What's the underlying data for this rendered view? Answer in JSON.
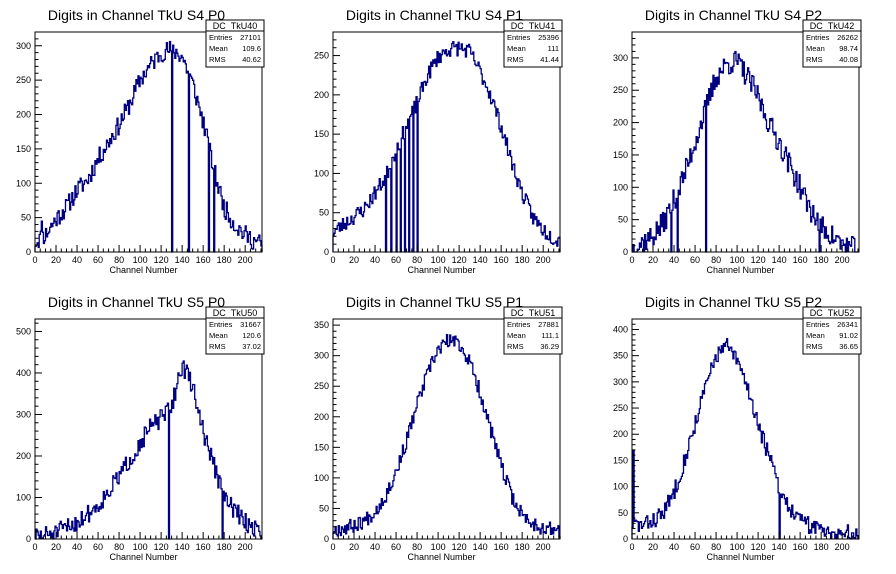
{
  "chart_data": [
    {
      "type": "histogram",
      "title": "Digits in Channel TkU S4 P0",
      "xlabel": "Channel Number",
      "xlim": [
        0,
        216
      ],
      "ylim": [
        0,
        320
      ],
      "xticks": [
        0,
        20,
        40,
        60,
        80,
        100,
        120,
        140,
        160,
        180,
        200
      ],
      "yticks": [
        0,
        50,
        100,
        150,
        200,
        250,
        300
      ],
      "stats": {
        "name": "DC_TkU40",
        "entries": "27101",
        "mean": "109.6",
        "rms": "40.62"
      },
      "profile": [
        [
          0,
          15
        ],
        [
          10,
          25
        ],
        [
          20,
          48
        ],
        [
          30,
          65
        ],
        [
          40,
          90
        ],
        [
          50,
          105
        ],
        [
          60,
          135
        ],
        [
          70,
          160
        ],
        [
          80,
          185
        ],
        [
          90,
          215
        ],
        [
          100,
          250
        ],
        [
          110,
          272
        ],
        [
          120,
          290
        ],
        [
          130,
          295
        ],
        [
          140,
          285
        ],
        [
          150,
          245
        ],
        [
          160,
          190
        ],
        [
          170,
          120
        ],
        [
          180,
          65
        ],
        [
          190,
          40
        ],
        [
          200,
          25
        ],
        [
          210,
          15
        ],
        [
          216,
          12
        ]
      ],
      "spikes": [
        [
          130,
          0
        ],
        [
          146,
          0
        ],
        [
          165,
          0
        ],
        [
          170,
          0
        ],
        [
          6,
          45
        ]
      ],
      "jitter": 14,
      "seed": 11
    },
    {
      "type": "histogram",
      "title": "Digits in Channel TkU S4 P1",
      "xlabel": "Channel Number",
      "xlim": [
        0,
        216
      ],
      "ylim": [
        0,
        280
      ],
      "xticks": [
        0,
        20,
        40,
        60,
        80,
        100,
        120,
        140,
        160,
        180,
        200
      ],
      "yticks": [
        0,
        50,
        100,
        150,
        200,
        250
      ],
      "stats": {
        "name": "DC_TkU41",
        "entries": "25396",
        "mean": "111",
        "rms": "41.44"
      },
      "profile": [
        [
          0,
          25
        ],
        [
          10,
          35
        ],
        [
          20,
          45
        ],
        [
          30,
          55
        ],
        [
          40,
          75
        ],
        [
          50,
          95
        ],
        [
          60,
          130
        ],
        [
          70,
          160
        ],
        [
          80,
          190
        ],
        [
          90,
          225
        ],
        [
          100,
          248
        ],
        [
          110,
          258
        ],
        [
          120,
          260
        ],
        [
          130,
          255
        ],
        [
          140,
          230
        ],
        [
          150,
          200
        ],
        [
          160,
          160
        ],
        [
          170,
          115
        ],
        [
          180,
          75
        ],
        [
          190,
          45
        ],
        [
          200,
          28
        ],
        [
          210,
          18
        ],
        [
          216,
          15
        ]
      ],
      "spikes": [
        [
          50,
          0
        ],
        [
          55,
          0
        ],
        [
          60,
          0
        ],
        [
          64,
          0
        ],
        [
          68,
          0
        ],
        [
          72,
          0
        ],
        [
          76,
          0
        ],
        [
          80,
          0
        ]
      ],
      "jitter": 10,
      "seed": 23
    },
    {
      "type": "histogram",
      "title": "Digits in Channel TkU S4 P2",
      "xlabel": "Channel Number",
      "xlim": [
        0,
        216
      ],
      "ylim": [
        0,
        340
      ],
      "xticks": [
        0,
        20,
        40,
        60,
        80,
        100,
        120,
        140,
        160,
        180,
        200
      ],
      "yticks": [
        0,
        50,
        100,
        150,
        200,
        250,
        300
      ],
      "stats": {
        "name": "DC_TkU42",
        "entries": "26262",
        "mean": "98.74",
        "rms": "40.08"
      },
      "profile": [
        [
          0,
          5
        ],
        [
          10,
          15
        ],
        [
          20,
          25
        ],
        [
          30,
          45
        ],
        [
          40,
          80
        ],
        [
          50,
          120
        ],
        [
          60,
          170
        ],
        [
          70,
          220
        ],
        [
          80,
          270
        ],
        [
          90,
          290
        ],
        [
          100,
          295
        ],
        [
          110,
          270
        ],
        [
          120,
          240
        ],
        [
          130,
          200
        ],
        [
          140,
          170
        ],
        [
          150,
          135
        ],
        [
          160,
          100
        ],
        [
          170,
          65
        ],
        [
          180,
          40
        ],
        [
          190,
          25
        ],
        [
          200,
          12
        ],
        [
          210,
          6
        ],
        [
          216,
          3
        ]
      ],
      "spikes": [
        [
          4,
          0
        ],
        [
          37,
          0
        ],
        [
          43,
          0
        ],
        [
          70,
          0
        ],
        [
          178,
          0
        ]
      ],
      "jitter": 18,
      "seed": 37
    },
    {
      "type": "histogram",
      "title": "Digits in Channel TkU S5 P0",
      "xlabel": "Channel Number",
      "xlim": [
        0,
        216
      ],
      "ylim": [
        0,
        530
      ],
      "xticks": [
        0,
        20,
        40,
        60,
        80,
        100,
        120,
        140,
        160,
        180,
        200
      ],
      "yticks": [
        0,
        100,
        200,
        300,
        400,
        500
      ],
      "stats": {
        "name": "DC_TkU50",
        "entries": "31667",
        "mean": "120.6",
        "rms": "37.02"
      },
      "profile": [
        [
          0,
          5
        ],
        [
          20,
          15
        ],
        [
          40,
          40
        ],
        [
          60,
          80
        ],
        [
          80,
          150
        ],
        [
          100,
          230
        ],
        [
          110,
          270
        ],
        [
          120,
          290
        ],
        [
          130,
          320
        ],
        [
          140,
          420
        ],
        [
          150,
          370
        ],
        [
          160,
          260
        ],
        [
          170,
          180
        ],
        [
          180,
          100
        ],
        [
          190,
          70
        ],
        [
          200,
          40
        ],
        [
          210,
          25
        ],
        [
          216,
          20
        ]
      ],
      "spikes": [
        [
          127,
          0
        ],
        [
          178,
          0
        ]
      ],
      "jitter": 22,
      "seed": 51
    },
    {
      "type": "histogram",
      "title": "Digits in Channel TkU S5 P1",
      "xlabel": "Channel Number",
      "xlim": [
        0,
        216
      ],
      "ylim": [
        0,
        360
      ],
      "xticks": [
        0,
        20,
        40,
        60,
        80,
        100,
        120,
        140,
        160,
        180,
        200
      ],
      "yticks": [
        0,
        50,
        100,
        150,
        200,
        250,
        300,
        350
      ],
      "stats": {
        "name": "DC_TkU51",
        "entries": "27881",
        "mean": "111.1",
        "rms": "36.29"
      },
      "profile": [
        [
          0,
          15
        ],
        [
          10,
          18
        ],
        [
          20,
          22
        ],
        [
          30,
          30
        ],
        [
          40,
          45
        ],
        [
          50,
          70
        ],
        [
          60,
          110
        ],
        [
          70,
          160
        ],
        [
          80,
          220
        ],
        [
          90,
          270
        ],
        [
          100,
          310
        ],
        [
          110,
          325
        ],
        [
          120,
          320
        ],
        [
          130,
          290
        ],
        [
          140,
          240
        ],
        [
          150,
          180
        ],
        [
          160,
          120
        ],
        [
          170,
          70
        ],
        [
          180,
          40
        ],
        [
          190,
          25
        ],
        [
          200,
          18
        ],
        [
          210,
          15
        ],
        [
          216,
          14
        ]
      ],
      "spikes": [],
      "jitter": 12,
      "seed": 67
    },
    {
      "type": "histogram",
      "title": "Digits in Channel TkU S5 P2",
      "xlabel": "Channel Number",
      "xlim": [
        0,
        216
      ],
      "ylim": [
        0,
        420
      ],
      "xticks": [
        0,
        20,
        40,
        60,
        80,
        100,
        120,
        140,
        160,
        180,
        200
      ],
      "yticks": [
        0,
        50,
        100,
        150,
        200,
        250,
        300,
        350,
        400
      ],
      "stats": {
        "name": "DC_TkU52",
        "entries": "26341",
        "mean": "91.02",
        "rms": "36.65"
      },
      "profile": [
        [
          0,
          30
        ],
        [
          10,
          25
        ],
        [
          20,
          35
        ],
        [
          30,
          50
        ],
        [
          40,
          90
        ],
        [
          50,
          150
        ],
        [
          60,
          220
        ],
        [
          70,
          290
        ],
        [
          80,
          350
        ],
        [
          90,
          370
        ],
        [
          100,
          340
        ],
        [
          110,
          290
        ],
        [
          120,
          220
        ],
        [
          130,
          160
        ],
        [
          140,
          100
        ],
        [
          150,
          60
        ],
        [
          160,
          35
        ],
        [
          170,
          25
        ],
        [
          180,
          20
        ],
        [
          190,
          15
        ],
        [
          200,
          12
        ],
        [
          210,
          10
        ],
        [
          216,
          8
        ]
      ],
      "spikes": [
        [
          1,
          170
        ],
        [
          140,
          0
        ]
      ],
      "jitter": 16,
      "seed": 83
    }
  ]
}
